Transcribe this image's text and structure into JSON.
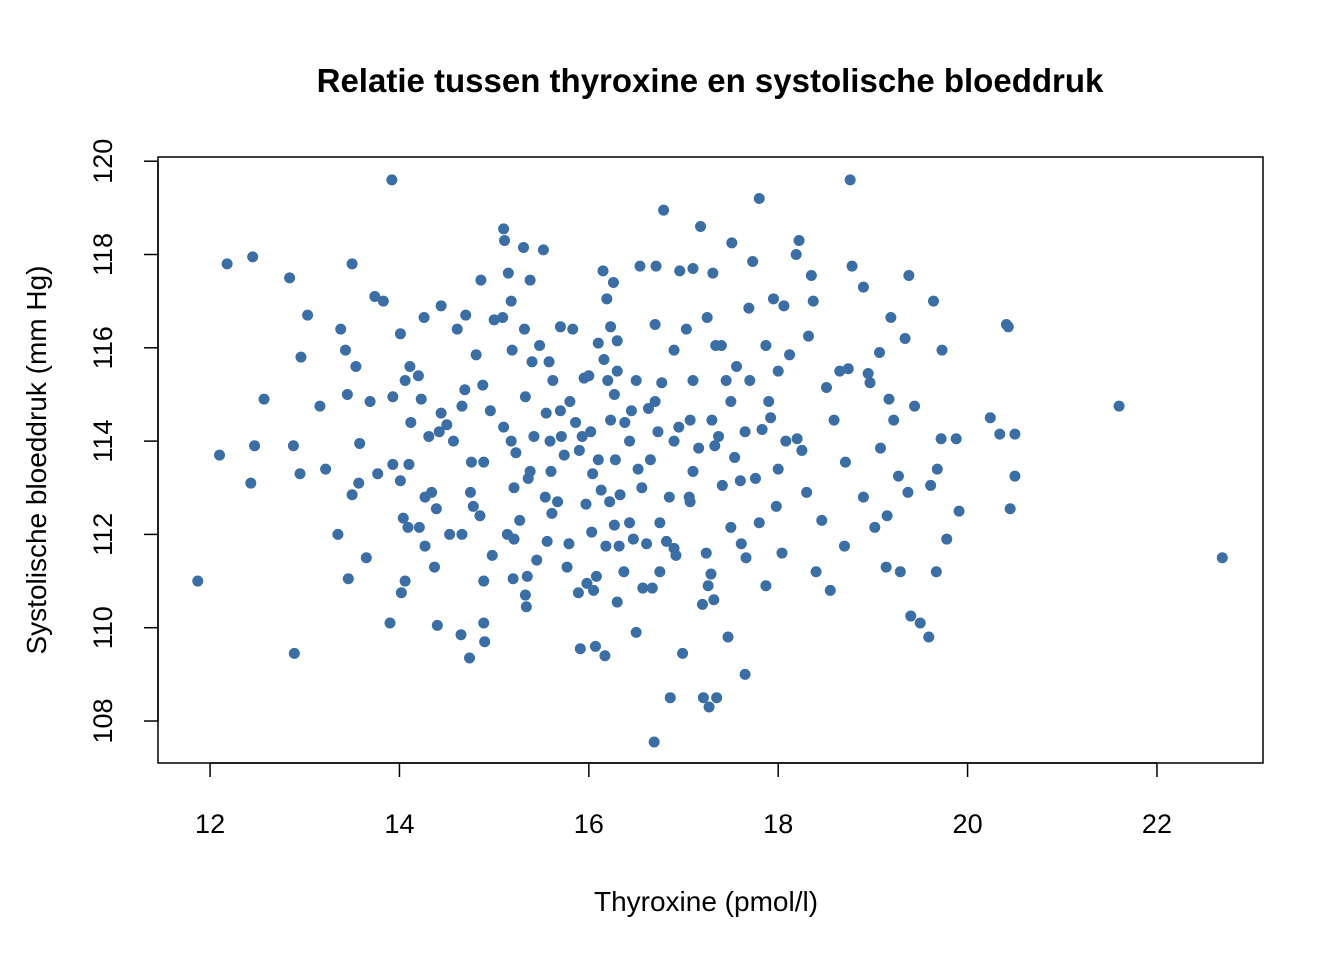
{
  "chart_data": {
    "type": "scatter",
    "title": "Relatie tussen thyroxine en systolische bloeddruk",
    "x_label": "Thyroxine (pmol/l)",
    "y_label": "Systolische bloeddruk (mm Hg)",
    "color": "#3a6ea5",
    "xlim": [
      11.45,
      23.12
    ],
    "ylim": [
      107.1,
      120.09
    ],
    "xticks": [
      12,
      14,
      16,
      18,
      20,
      22
    ],
    "yticks": [
      108,
      110,
      112,
      114,
      116,
      118,
      120
    ],
    "x": [
      11.87,
      12.1,
      12.18,
      12.43,
      12.45,
      12.47,
      12.57,
      12.84,
      12.88,
      12.89,
      12.95,
      12.96,
      13.03,
      13.16,
      13.22,
      13.35,
      13.38,
      13.43,
      13.45,
      13.46,
      13.5,
      13.5,
      13.54,
      13.58,
      13.57,
      13.65,
      13.69,
      13.74,
      13.83,
      13.77,
      13.92,
      13.9,
      13.93,
      13.93,
      14.01,
      14.01,
      14.02,
      14.04,
      14.06,
      14.06,
      14.09,
      14.1,
      14.12,
      14.11,
      14.2,
      14.21,
      14.23,
      14.26,
      14.27,
      14.27,
      14.31,
      14.34,
      14.37,
      14.39,
      14.4,
      14.42,
      14.44,
      14.44,
      14.5,
      14.53,
      14.57,
      14.61,
      14.65,
      14.66,
      14.66,
      14.69,
      14.7,
      14.74,
      14.75,
      14.76,
      14.78,
      14.81,
      14.85,
      14.86,
      14.88,
      14.89,
      14.89,
      14.89,
      14.9,
      14.96,
      14.98,
      15.0,
      15.09,
      15.1,
      15.11,
      15.1,
      15.14,
      15.15,
      15.18,
      15.18,
      15.19,
      15.2,
      15.21,
      15.21,
      15.23,
      15.27,
      15.31,
      15.32,
      15.33,
      15.33,
      15.34,
      15.35,
      15.36,
      15.38,
      15.4,
      15.42,
      15.45,
      15.48,
      15.52,
      15.54,
      15.55,
      15.56,
      15.58,
      15.59,
      15.61,
      15.62,
      15.67,
      15.7,
      15.71,
      15.74,
      15.77,
      15.79,
      15.83,
      15.86,
      15.89,
      15.91,
      15.93,
      15.95,
      15.97,
      15.98,
      16.02,
      16.03,
      16.04,
      16.05,
      16.07,
      16.08,
      16.1,
      16.13,
      16.15,
      16.17,
      16.18,
      16.19,
      16.2,
      16.23,
      16.26,
      16.27,
      16.28,
      16.3,
      16.32,
      16.33,
      16.37,
      16.38,
      16.43,
      16.45,
      16.47,
      16.5,
      16.52,
      16.54,
      16.56,
      16.57,
      16.61,
      16.63,
      16.67,
      16.69,
      16.71,
      16.73,
      16.75,
      16.77,
      16.79,
      16.82,
      16.85,
      16.86,
      16.9,
      16.92,
      16.95,
      16.96,
      16.99,
      17.03,
      17.06,
      17.1,
      17.16,
      17.18,
      17.2,
      17.21,
      17.24,
      17.25,
      17.26,
      17.27,
      17.29,
      17.31,
      17.32,
      17.34,
      17.35,
      17.37,
      17.41,
      17.45,
      17.47,
      17.5,
      17.51,
      17.54,
      17.56,
      17.61,
      17.65,
      17.66,
      17.69,
      17.73,
      17.76,
      17.8,
      17.83,
      17.87,
      17.92,
      17.95,
      17.98,
      18.0,
      18.04,
      18.06,
      18.08,
      18.12,
      18.19,
      18.22,
      18.25,
      18.3,
      18.32,
      18.35,
      18.37,
      18.4,
      18.46,
      18.51,
      18.55,
      18.59,
      18.65,
      18.7,
      18.71,
      18.74,
      18.76,
      18.78,
      18.9,
      18.9,
      18.95,
      18.97,
      19.02,
      19.07,
      19.08,
      19.14,
      19.15,
      19.17,
      19.19,
      19.22,
      19.27,
      19.29,
      19.34,
      19.37,
      19.38,
      19.4,
      19.44,
      19.5,
      19.59,
      19.61,
      19.64,
      19.67,
      19.68,
      19.72,
      19.73,
      19.78,
      19.88,
      19.91,
      20.24,
      20.34,
      20.41,
      20.43,
      20.45,
      20.5,
      20.5,
      21.6,
      22.69,
      16.0,
      16.16,
      16.3,
      16.5,
      16.7,
      16.9,
      17.1,
      17.3,
      17.5,
      17.7,
      17.9,
      17.1,
      16.65,
      16.43,
      16.23,
      15.8,
      15.6,
      15.38,
      16.22,
      16.75,
      17.07,
      17.6,
      17.8,
      16.1,
      15.9,
      15.7,
      16.3,
      16.9,
      17.4,
      17.87,
      18.2,
      18.0,
      16.7,
      16.27,
      17.07,
      17.33,
      17.65
    ],
    "values": [
      111.0,
      113.7,
      117.8,
      113.1,
      117.95,
      113.9,
      114.9,
      117.5,
      113.9,
      109.45,
      113.3,
      115.8,
      116.7,
      114.75,
      113.4,
      112.0,
      116.4,
      115.95,
      115.0,
      111.05,
      117.8,
      112.85,
      115.6,
      113.95,
      113.1,
      111.5,
      114.85,
      117.1,
      117.0,
      113.3,
      119.6,
      110.1,
      113.5,
      114.95,
      116.3,
      113.15,
      110.75,
      112.35,
      111.0,
      115.3,
      112.15,
      113.5,
      114.4,
      115.6,
      115.4,
      112.15,
      114.9,
      116.65,
      111.75,
      112.8,
      114.1,
      112.9,
      111.3,
      112.55,
      110.05,
      114.2,
      114.6,
      116.9,
      114.35,
      112.0,
      114.0,
      116.4,
      109.85,
      112.0,
      114.75,
      115.1,
      116.7,
      109.35,
      112.9,
      113.55,
      112.6,
      115.85,
      112.4,
      117.45,
      115.2,
      113.55,
      111.0,
      110.1,
      109.7,
      114.65,
      111.55,
      116.6,
      116.65,
      118.55,
      118.3,
      114.3,
      112.0,
      117.6,
      117.0,
      114.0,
      115.95,
      111.05,
      113.0,
      111.9,
      113.75,
      112.3,
      118.15,
      116.4,
      114.95,
      110.7,
      110.45,
      111.1,
      113.2,
      117.45,
      115.7,
      114.1,
      111.45,
      116.05,
      118.1,
      112.8,
      114.6,
      111.85,
      115.7,
      114.0,
      112.45,
      115.3,
      112.7,
      116.45,
      114.1,
      113.7,
      111.3,
      111.8,
      116.4,
      114.4,
      110.75,
      109.55,
      114.1,
      115.35,
      112.65,
      110.95,
      114.2,
      112.05,
      113.3,
      110.8,
      109.6,
      111.1,
      116.1,
      112.95,
      117.65,
      109.4,
      111.75,
      117.05,
      115.3,
      116.45,
      117.4,
      112.2,
      113.6,
      110.55,
      111.75,
      112.85,
      111.2,
      114.4,
      112.25,
      114.65,
      111.9,
      109.9,
      113.4,
      117.75,
      113.0,
      110.85,
      111.8,
      114.7,
      110.85,
      107.55,
      117.75,
      114.2,
      111.2,
      115.25,
      118.95,
      111.85,
      112.8,
      108.5,
      111.7,
      111.55,
      114.3,
      117.65,
      109.45,
      116.4,
      112.8,
      117.7,
      113.85,
      118.6,
      110.5,
      108.5,
      111.6,
      116.65,
      110.9,
      108.3,
      111.15,
      117.6,
      110.6,
      116.05,
      108.5,
      114.1,
      113.05,
      115.3,
      109.8,
      112.15,
      118.25,
      113.65,
      115.6,
      111.8,
      109.0,
      111.5,
      116.85,
      117.85,
      113.2,
      119.2,
      114.25,
      110.9,
      114.5,
      117.05,
      112.6,
      115.5,
      111.6,
      116.9,
      114.0,
      115.85,
      118.0,
      118.3,
      113.8,
      112.9,
      116.25,
      117.55,
      117.0,
      111.2,
      112.3,
      115.15,
      110.8,
      114.45,
      115.5,
      111.75,
      113.55,
      115.55,
      119.6,
      117.75,
      117.3,
      112.8,
      115.45,
      115.25,
      112.15,
      115.9,
      113.85,
      111.3,
      112.4,
      114.9,
      116.65,
      114.45,
      113.25,
      111.2,
      116.2,
      112.9,
      117.55,
      110.25,
      114.75,
      110.1,
      109.8,
      113.05,
      117.0,
      111.2,
      113.4,
      114.05,
      115.95,
      111.9,
      114.05,
      112.5,
      114.5,
      114.15,
      116.5,
      116.45,
      112.55,
      114.15,
      113.25,
      114.75,
      111.5,
      115.4,
      115.75,
      115.5,
      115.3,
      114.85,
      114.0,
      113.35,
      114.45,
      114.85,
      115.3,
      114.85,
      115.3,
      113.6,
      114.0,
      114.45,
      114.85,
      113.35,
      113.35,
      112.7,
      112.25,
      112.7,
      113.15,
      112.25,
      113.6,
      113.8,
      114.65,
      116.15,
      115.95,
      116.05,
      116.05,
      114.05,
      113.4,
      116.5,
      115.0,
      114.45,
      113.9,
      114.2
    ]
  }
}
